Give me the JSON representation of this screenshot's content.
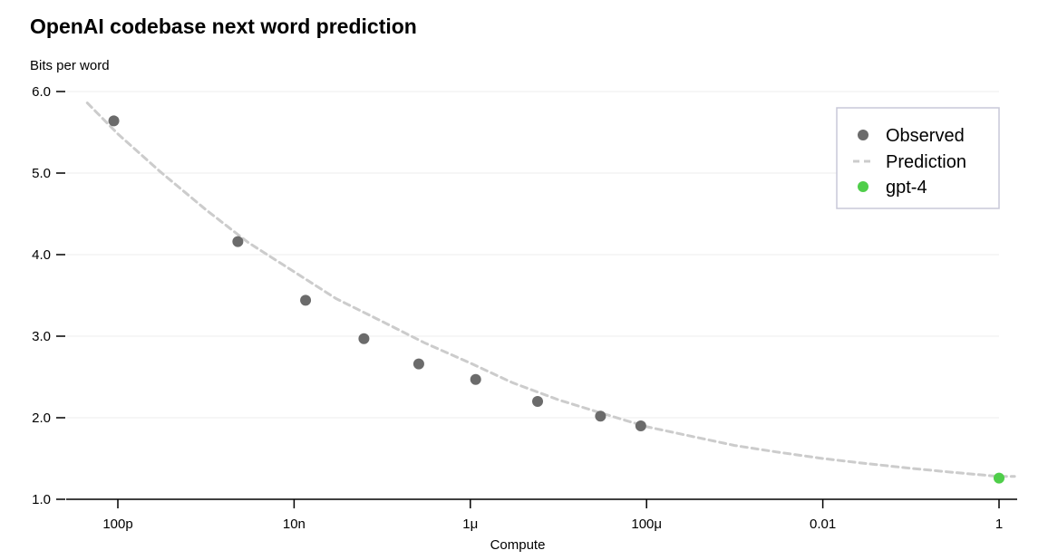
{
  "chart_data": {
    "type": "scatter",
    "title": "OpenAI codebase next word prediction",
    "ylabel": "Bits per word",
    "xlabel": "Compute",
    "xscale": "log",
    "xlim": [
      3e-11,
      2
    ],
    "ylim": [
      1.0,
      6.0
    ],
    "y_ticks": [
      1.0,
      2.0,
      3.0,
      4.0,
      5.0,
      6.0
    ],
    "y_tick_labels": [
      "1.0",
      "2.0",
      "3.0",
      "4.0",
      "5.0",
      "6.0"
    ],
    "x_ticks": [
      1e-10,
      1e-08,
      1e-06,
      0.0001,
      0.01,
      1
    ],
    "x_tick_labels": [
      "100p",
      "10n",
      "1μ",
      "100μ",
      "0.01",
      "1"
    ],
    "grid": true,
    "legend_position": "top-right",
    "series": [
      {
        "name": "Observed",
        "kind": "points",
        "color": "#6b6b6b",
        "x": [
          9e-11,
          2.3e-09,
          1.35e-08,
          6.2e-08,
          2.6e-07,
          1.15e-06,
          5.8e-06,
          3e-05,
          8.6e-05
        ],
        "y": [
          5.64,
          4.16,
          3.44,
          2.97,
          2.66,
          2.47,
          2.2,
          2.02,
          1.9
        ]
      },
      {
        "name": "Prediction",
        "kind": "dashed-line",
        "color": "#cccccc",
        "x": [
          4.5e-11,
          1e-10,
          3e-10,
          1e-09,
          3e-09,
          1e-08,
          3e-08,
          1e-07,
          3e-07,
          1e-06,
          3e-06,
          1e-05,
          3e-05,
          0.0001,
          0.0003,
          0.001,
          0.003,
          0.01,
          0.03,
          0.1,
          0.3,
          1.0,
          1.5
        ],
        "y": [
          5.86,
          5.48,
          5.02,
          4.55,
          4.15,
          3.79,
          3.46,
          3.18,
          2.92,
          2.67,
          2.43,
          2.22,
          2.06,
          1.89,
          1.78,
          1.66,
          1.58,
          1.5,
          1.44,
          1.38,
          1.33,
          1.28,
          1.28
        ]
      },
      {
        "name": "gpt-4",
        "kind": "points",
        "color": "#4fce4a",
        "x": [
          1.0
        ],
        "y": [
          1.26
        ]
      }
    ]
  }
}
